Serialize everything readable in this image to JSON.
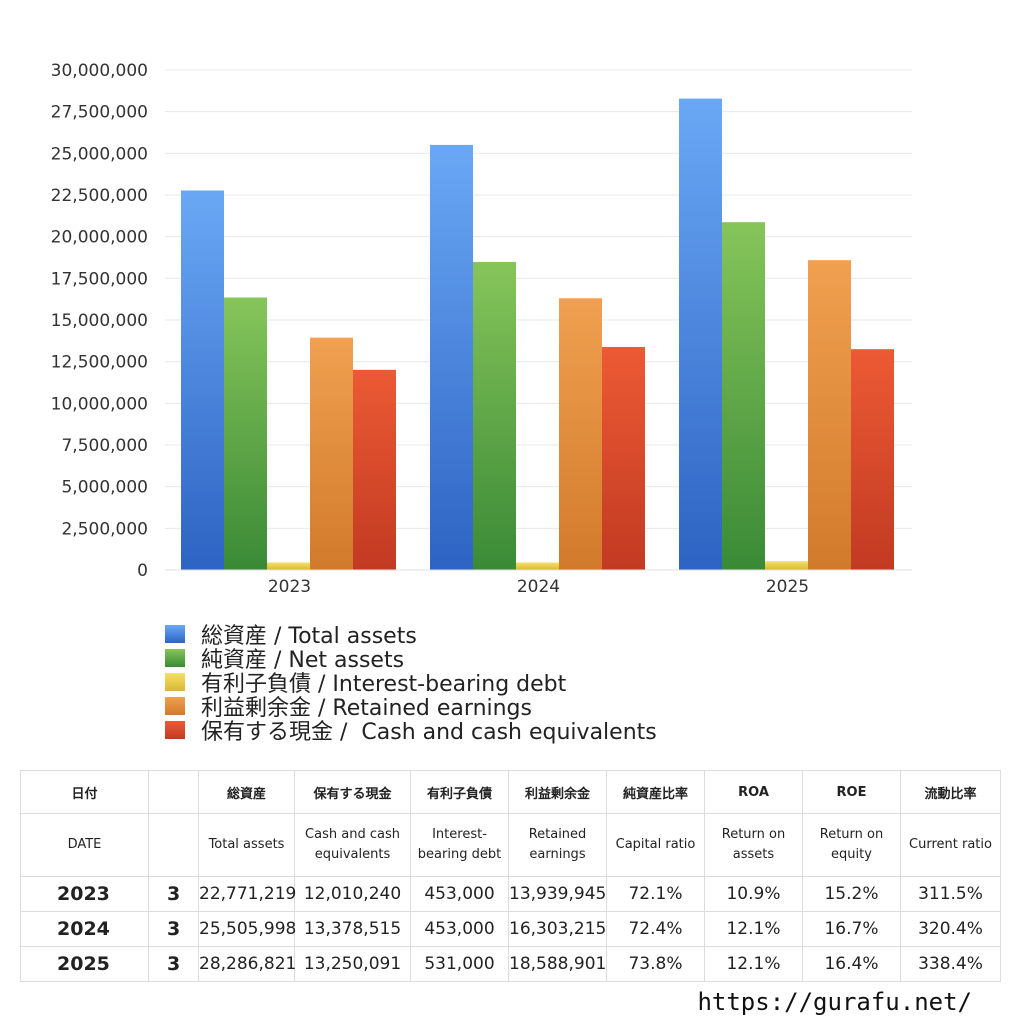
{
  "chart_data": {
    "type": "bar",
    "categories": [
      "2023",
      "2024",
      "2025"
    ],
    "ylim": [
      0,
      30000000
    ],
    "yticks": [
      "0",
      "2,500,000",
      "5,000,000",
      "7,500,000",
      "10,000,000",
      "12,500,000",
      "15,000,000",
      "17,500,000",
      "20,000,000",
      "22,500,000",
      "25,000,000",
      "27,500,000",
      "30,000,000"
    ],
    "ytick_values": [
      0,
      2500000,
      5000000,
      7500000,
      10000000,
      12500000,
      15000000,
      17500000,
      20000000,
      22500000,
      25000000,
      27500000,
      30000000
    ],
    "grid": true,
    "legend_position": "bottom",
    "series": [
      {
        "name": "総資産 / Total assets",
        "color_top": "#6aa8f5",
        "color_bottom": "#2d63c3",
        "values": [
          22771219,
          25505998,
          28286821
        ]
      },
      {
        "name": "純資産 / Net assets",
        "color_top": "#86c55a",
        "color_bottom": "#3a8a36",
        "values": [
          16350000,
          18480000,
          20870000
        ]
      },
      {
        "name": "有利子負債 / Interest-bearing debt",
        "color_top": "#f5e06a",
        "color_bottom": "#d9b832",
        "values": [
          453000,
          453000,
          531000
        ]
      },
      {
        "name": "利益剰余金 / Retained earnings",
        "color_top": "#f0a050",
        "color_bottom": "#d27a2c",
        "values": [
          13939945,
          16303215,
          18588901
        ]
      },
      {
        "name": "保有する現金 /  Cash and cash equivalents",
        "color_top": "#ec5a34",
        "color_bottom": "#c23a22",
        "values": [
          12010240,
          13378515,
          13250091
        ]
      }
    ]
  },
  "table": {
    "headers_jp": [
      "日付",
      "",
      "総資産",
      "保有する現金",
      "有利子負債",
      "利益剰余金",
      "純資産比率",
      "ROA",
      "ROE",
      "流動比率"
    ],
    "headers_en": [
      "DATE",
      "",
      "Total assets",
      "Cash and cash equivalents",
      "Interest-bearing debt",
      "Retained earnings",
      "Capital ratio",
      "Return on assets",
      "Return on equity",
      "Current ratio"
    ],
    "rows": [
      [
        "2023",
        "3",
        "22,771,219",
        "12,010,240",
        "453,000",
        "13,939,945",
        "72.1%",
        "10.9%",
        "15.2%",
        "311.5%"
      ],
      [
        "2024",
        "3",
        "25,505,998",
        "13,378,515",
        "453,000",
        "16,303,215",
        "72.4%",
        "12.1%",
        "16.7%",
        "320.4%"
      ],
      [
        "2025",
        "3",
        "28,286,821",
        "13,250,091",
        "531,000",
        "18,588,901",
        "73.8%",
        "12.1%",
        "16.4%",
        "338.4%"
      ]
    ]
  },
  "footer": {
    "url": "https://gurafu.net/"
  }
}
